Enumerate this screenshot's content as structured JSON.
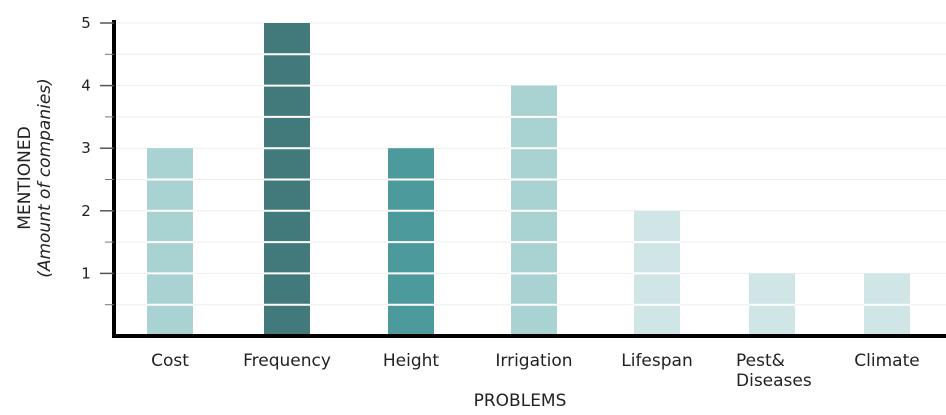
{
  "chart_data": {
    "type": "bar",
    "categories": [
      "Cost",
      "Frequency",
      "Height",
      "Irrigation",
      "Lifespan",
      "Pest&\nDiseases",
      "Climate"
    ],
    "values": [
      3,
      5,
      3,
      4,
      2,
      1,
      1
    ],
    "bar_colors": [
      "#a9d2d3",
      "#42797b",
      "#4d9a9d",
      "#a9d2d3",
      "#cfe5e6",
      "#cfe5e6",
      "#cfe5e6"
    ],
    "xlabel": "PROBLEMS",
    "ylabel_line1": "MENTIONED",
    "ylabel_line2": "(Amount of companies)",
    "ylim": [
      0,
      5
    ],
    "yticks": [
      1,
      2,
      3,
      4,
      5
    ],
    "minor_ticks": [
      0.5,
      1.5,
      2.5,
      3.5,
      4.5
    ],
    "grid": "horizontal",
    "legend": "none"
  }
}
